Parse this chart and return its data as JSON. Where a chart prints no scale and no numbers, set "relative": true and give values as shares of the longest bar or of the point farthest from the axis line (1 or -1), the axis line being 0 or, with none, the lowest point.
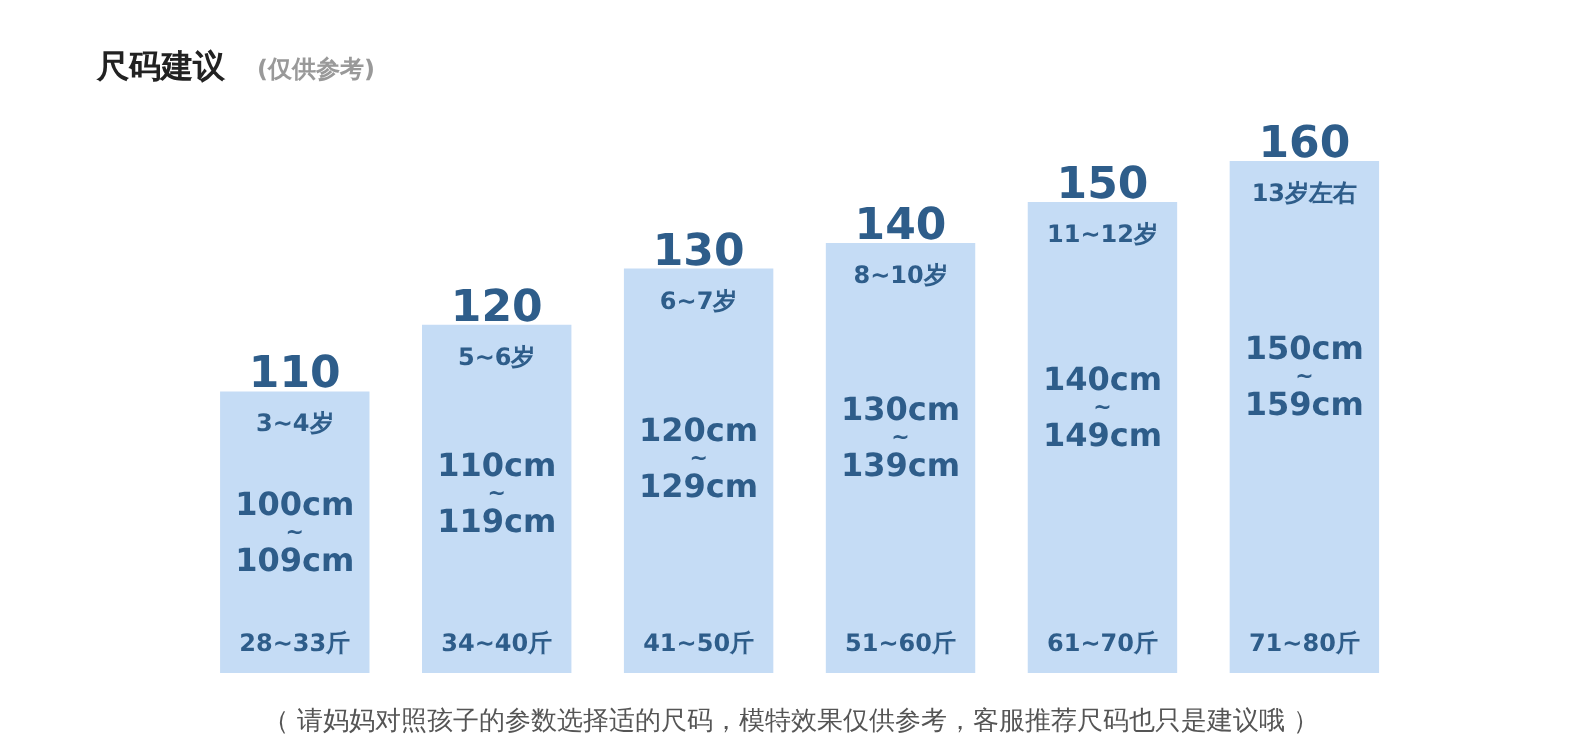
{
  "chart_data": {
    "type": "bar",
    "relative": true,
    "title": "尺码建议",
    "subtitle": "(仅供参考)",
    "categories": [
      "110",
      "120",
      "130",
      "140",
      "150",
      "160"
    ],
    "values": [
      0.55,
      0.68,
      0.79,
      0.84,
      0.92,
      1
    ],
    "color": "#c5dcf5",
    "annotations": [
      "3~4岁",
      "100cm\n~\n109cm",
      "28~33斤",
      "5~6岁",
      "110cm\n~\n119cm",
      "34~40斤",
      "6~7岁",
      "120cm\n~\n129cm",
      "41~50斤",
      "8~10岁",
      "130cm\n~\n139cm",
      "51~60斤",
      "11~12岁",
      "140cm\n~\n149cm",
      "61~70斤",
      "13岁左右",
      "150cm\n~\n159cm",
      "71~80斤",
      "（ 请妈妈对照孩子的参数选择适的尺码，模特效果仅供参考，客服推荐尺码也只是建议哦 ）"
    ]
  }
}
